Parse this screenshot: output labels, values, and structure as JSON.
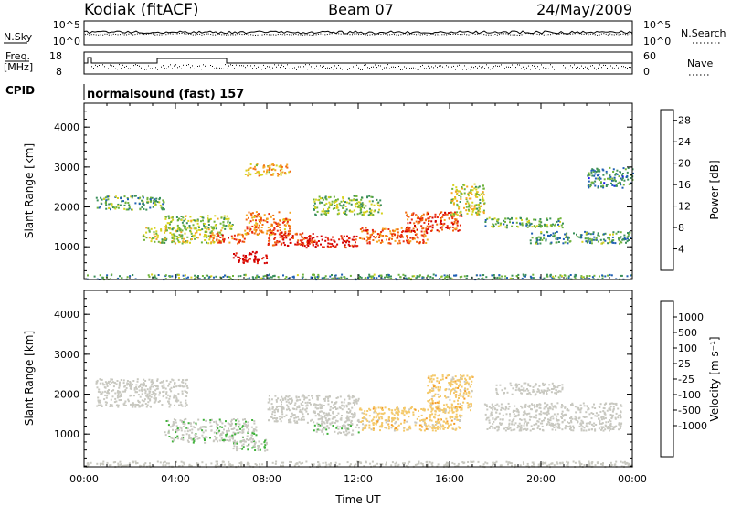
{
  "header": {
    "station": "Kodiak (fitACF)",
    "beam": "Beam 07",
    "date": "24/May/2009"
  },
  "top_panels": {
    "nsky_label": "N.Sky",
    "nsky_ticks": [
      "10^5",
      "10^0"
    ],
    "nsearch_label": "N.Search",
    "nsearch_ticks": [
      "10^5",
      "10^0"
    ],
    "freq_label": "Freq.",
    "freq_unit": "[MHz]",
    "freq_ticks": [
      "18",
      "8"
    ],
    "nave_label": "Nave",
    "nave_ticks": [
      "60",
      "0"
    ],
    "cpid_label": "CPID",
    "cpid_value": "normalsound (fast) 157"
  },
  "colors": {
    "power_scale": [
      "#1a1aee",
      "#1f5fb4",
      "#3a8f5a",
      "#6fb33b",
      "#d6d21e",
      "#f5a623",
      "#f26a0e",
      "#e82a10",
      "#d40000"
    ],
    "velocity_scale": [
      "#e01010",
      "#f25e0e",
      "#f59a22",
      "#f4c96a",
      "#c8c8c0",
      "#c8c8c0",
      "#3fb13a",
      "#2f8a5a",
      "#2d6fb0",
      "#1a2ca8"
    ],
    "ground_scatter": "#c8c8c0"
  },
  "chart_data": [
    {
      "type": "heatmap",
      "title": "",
      "xlabel": "Time UT",
      "ylabel": "Slant Range [km]",
      "x_ticks": [
        "00:00",
        "04:00",
        "08:00",
        "12:00",
        "16:00",
        "20:00",
        "00:00"
      ],
      "y_ticks": [
        "1000",
        "2000",
        "3000",
        "4000"
      ],
      "xlim_hours": [
        0,
        24
      ],
      "ylim_km": [
        180,
        4600
      ],
      "colorbar": {
        "label": "Power [dB]",
        "ticks": [
          "4",
          "8",
          "12",
          "16",
          "20",
          "24",
          "28"
        ],
        "range": [
          0,
          30
        ]
      },
      "regions": [
        {
          "t0": 0.0,
          "t1": 24.0,
          "r0": 200,
          "r1": 330,
          "v": 9
        },
        {
          "t0": 0.5,
          "t1": 3.5,
          "r0": 1950,
          "r1": 2300,
          "v": 10
        },
        {
          "t0": 2.5,
          "t1": 6.0,
          "r0": 1100,
          "r1": 1500,
          "v": 14
        },
        {
          "t0": 3.5,
          "t1": 6.5,
          "r0": 1450,
          "r1": 1800,
          "v": 12
        },
        {
          "t0": 5.5,
          "t1": 7.0,
          "r0": 1100,
          "r1": 1350,
          "v": 22
        },
        {
          "t0": 6.5,
          "t1": 8.0,
          "r0": 600,
          "r1": 900,
          "v": 29
        },
        {
          "t0": 7.0,
          "t1": 9.0,
          "r0": 1300,
          "r1": 1900,
          "v": 21
        },
        {
          "t0": 7.0,
          "t1": 9.0,
          "r0": 2800,
          "r1": 3100,
          "v": 18
        },
        {
          "t0": 8.0,
          "t1": 10.0,
          "r0": 1050,
          "r1": 1400,
          "v": 25
        },
        {
          "t0": 9.5,
          "t1": 12.0,
          "r0": 1000,
          "r1": 1300,
          "v": 27
        },
        {
          "t0": 10.0,
          "t1": 13.0,
          "r0": 1800,
          "r1": 2300,
          "v": 12
        },
        {
          "t0": 12.0,
          "t1": 15.0,
          "r0": 1100,
          "r1": 1500,
          "v": 22
        },
        {
          "t0": 14.0,
          "t1": 16.5,
          "r0": 1400,
          "r1": 1900,
          "v": 24
        },
        {
          "t0": 16.0,
          "t1": 17.5,
          "r0": 1800,
          "r1": 2600,
          "v": 14
        },
        {
          "t0": 17.5,
          "t1": 21.0,
          "r0": 1500,
          "r1": 1750,
          "v": 10
        },
        {
          "t0": 19.5,
          "t1": 24.0,
          "r0": 1100,
          "r1": 1400,
          "v": 9
        },
        {
          "t0": 22.0,
          "t1": 24.0,
          "r0": 2500,
          "r1": 3000,
          "v": 8
        }
      ]
    },
    {
      "type": "heatmap",
      "title": "",
      "xlabel": "Time UT",
      "ylabel": "Slant Range [km]",
      "x_ticks": [
        "00:00",
        "04:00",
        "08:00",
        "12:00",
        "16:00",
        "20:00",
        "00:00"
      ],
      "y_ticks": [
        "1000",
        "2000",
        "3000",
        "4000"
      ],
      "xlim_hours": [
        0,
        24
      ],
      "ylim_km": [
        180,
        4600
      ],
      "colorbar": {
        "label": "Velocity [m s⁻¹]",
        "ticks": [
          "1000",
          "500",
          "100",
          "25",
          "-25",
          "-100",
          "-500",
          "-1000"
        ],
        "range": [
          -1200,
          1200
        ]
      },
      "regions": [
        {
          "t0": 0.0,
          "t1": 24.0,
          "r0": 200,
          "r1": 330,
          "v": 40
        },
        {
          "t0": 0.5,
          "t1": 4.5,
          "r0": 1700,
          "r1": 2400,
          "v": 0,
          "ground": true
        },
        {
          "t0": 3.5,
          "t1": 7.5,
          "r0": 800,
          "r1": 1400,
          "v": 150
        },
        {
          "t0": 6.5,
          "t1": 8.0,
          "r0": 600,
          "r1": 900,
          "v": 150
        },
        {
          "t0": 8.0,
          "t1": 12.0,
          "r0": 1300,
          "r1": 2000,
          "v": 0,
          "ground": true
        },
        {
          "t0": 10.0,
          "t1": 12.0,
          "r0": 1000,
          "r1": 1300,
          "v": 150
        },
        {
          "t0": 12.0,
          "t1": 16.5,
          "r0": 1100,
          "r1": 1700,
          "v": -350
        },
        {
          "t0": 15.0,
          "t1": 17.0,
          "r0": 1600,
          "r1": 2500,
          "v": -350
        },
        {
          "t0": 17.5,
          "t1": 23.5,
          "r0": 1100,
          "r1": 1800,
          "v": 0,
          "ground": true
        },
        {
          "t0": 18.0,
          "t1": 21.0,
          "r0": 2000,
          "r1": 2300,
          "v": 0,
          "ground": true
        }
      ]
    }
  ]
}
